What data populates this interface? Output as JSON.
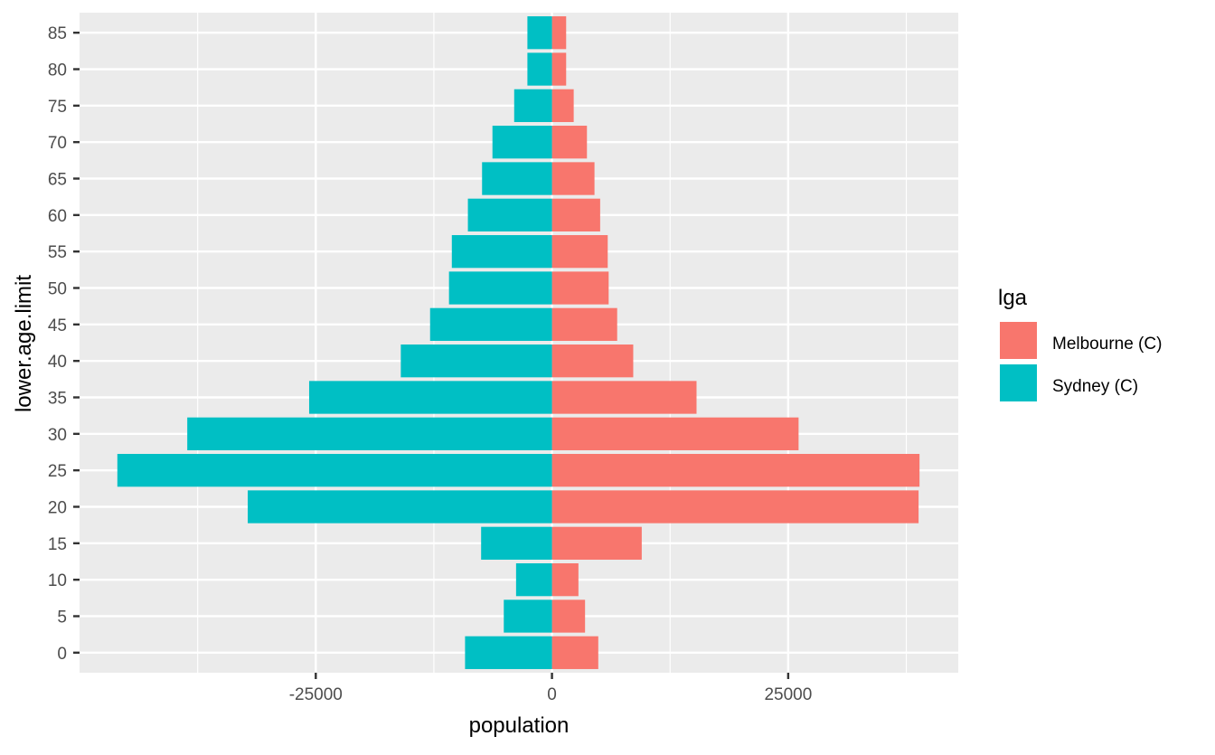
{
  "chart_data": {
    "type": "bar",
    "orientation": "horizontal",
    "title": "",
    "xlabel": "population",
    "ylabel": "lower.age.limit",
    "categories": [
      "0",
      "5",
      "10",
      "15",
      "20",
      "25",
      "30",
      "35",
      "40",
      "45",
      "50",
      "55",
      "60",
      "65",
      "70",
      "75",
      "80",
      "85"
    ],
    "series": [
      {
        "name": "Melbourne (C)",
        "color": "#F8766D",
        "values": [
          4900,
          3500,
          2800,
          9500,
          38800,
          38900,
          26100,
          15300,
          8600,
          6900,
          6000,
          5900,
          5100,
          4500,
          3700,
          2300,
          1500,
          1500
        ]
      },
      {
        "name": "Sydney (C)",
        "color": "#00BFC4",
        "values": [
          -9200,
          -5100,
          -3800,
          -7500,
          -32200,
          -46000,
          -38600,
          -25700,
          -16000,
          -12900,
          -10900,
          -10600,
          -8900,
          -7400,
          -6300,
          -4000,
          -2600,
          -2600
        ]
      }
    ],
    "xlim": [
      -50000,
      43000
    ],
    "x_ticks": [
      -25000,
      0,
      25000
    ],
    "x_tick_labels": [
      "-25000",
      "0",
      "25000"
    ],
    "y_tick_labels": [
      "0",
      "5",
      "10",
      "15",
      "20",
      "25",
      "30",
      "35",
      "40",
      "45",
      "50",
      "55",
      "60",
      "65",
      "70",
      "75",
      "80",
      "85"
    ],
    "grid": true,
    "legend": {
      "title": "lga",
      "position": "right",
      "entries": [
        "Melbourne (C)",
        "Sydney (C)"
      ]
    },
    "colors": {
      "panel_background": "#EBEBEB",
      "grid_line": "#FFFFFF",
      "axis_text": "#4D4D4D",
      "axis_title": "#000000",
      "tick_mark": "#333333"
    }
  }
}
